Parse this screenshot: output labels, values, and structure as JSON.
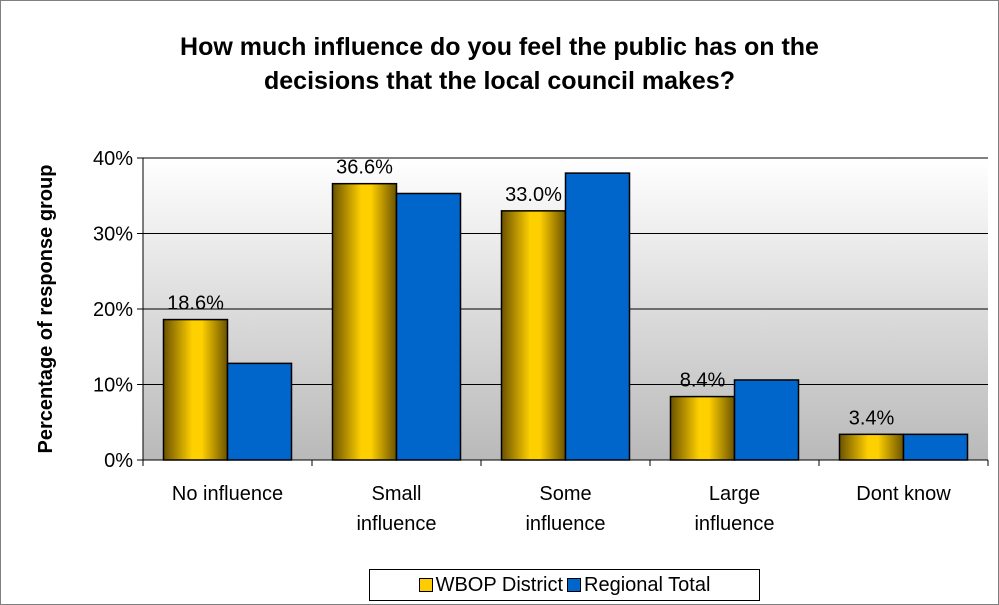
{
  "chart_data": {
    "type": "bar",
    "title_lines": [
      "How much influence do you feel the public has on the",
      "decisions that the local council makes?"
    ],
    "ylabel": "Percentage of response group",
    "ylim": [
      0,
      40
    ],
    "yticks": [
      "0%",
      "10%",
      "20%",
      "30%",
      "40%"
    ],
    "ytick_values": [
      0,
      10,
      20,
      30,
      40
    ],
    "categories": [
      [
        "No influence"
      ],
      [
        "Small",
        "influence"
      ],
      [
        "Some",
        "influence"
      ],
      [
        "Large",
        "influence"
      ],
      [
        "Dont know"
      ]
    ],
    "series": [
      {
        "name": "WBOP District",
        "values": [
          18.6,
          36.6,
          33.0,
          8.4,
          3.4
        ],
        "labels": [
          "18.6%",
          "36.6%",
          "33.0%",
          "8.4%",
          "3.4%"
        ],
        "color": "#ffcc00"
      },
      {
        "name": "Regional Total",
        "values": [
          12.8,
          35.3,
          38.0,
          10.6,
          3.4
        ],
        "color": "#0066cc"
      }
    ],
    "grid": true,
    "legend_position": "bottom"
  }
}
